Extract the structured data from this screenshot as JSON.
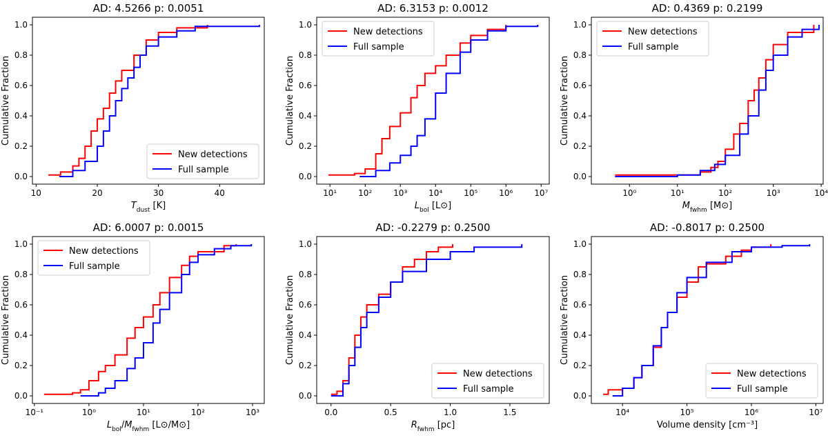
{
  "chart_data": [
    {
      "type": "line",
      "title": "AD: 4.5266 p: 0.0051",
      "xlabel": [
        {
          "text": "T",
          "italic": true
        },
        {
          "text": "dust",
          "sub": true
        },
        {
          "text": " [K]"
        }
      ],
      "ylabel": "Cumulative Fraction",
      "xlim": [
        9.4,
        47.3
      ],
      "ylim": [
        -0.05,
        1.05
      ],
      "xscale": "linear",
      "legend": "lower right",
      "xticks": [
        10,
        20,
        30,
        40
      ],
      "yticks": [
        {
          "value": 0,
          "label": "0.0"
        },
        0.2,
        0.4,
        0.6,
        0.8,
        {
          "value": 1,
          "label": "1.0"
        }
      ],
      "series": [
        {
          "name": "New detections",
          "color": "#ff0000",
          "x": [
            12,
            14,
            16,
            17,
            18,
            19,
            20,
            21,
            22,
            23,
            24,
            26,
            28,
            30,
            33,
            38
          ],
          "values": [
            0.01,
            0.03,
            0.07,
            0.12,
            0.2,
            0.3,
            0.38,
            0.45,
            0.55,
            0.63,
            0.7,
            0.8,
            0.9,
            0.95,
            0.98,
            1.0
          ]
        },
        {
          "name": "Full sample",
          "color": "#0000ff",
          "x": [
            13.8,
            16,
            18,
            20,
            21,
            22,
            23,
            24,
            25,
            26,
            27,
            28,
            30,
            33,
            36,
            46.5
          ],
          "values": [
            0.0,
            0.04,
            0.1,
            0.2,
            0.3,
            0.4,
            0.5,
            0.58,
            0.65,
            0.72,
            0.8,
            0.86,
            0.92,
            0.96,
            0.99,
            1.0
          ]
        }
      ]
    },
    {
      "type": "line",
      "title": "AD: 6.3153 p: 0.0012",
      "xlabel": [
        {
          "text": "L",
          "italic": true
        },
        {
          "text": "bol",
          "sub": true
        },
        {
          "text": " [L⊙]"
        }
      ],
      "ylabel": "Cumulative Fraction",
      "xlim": [
        4.2,
        17000000
      ],
      "ylim": [
        -0.05,
        1.05
      ],
      "xscale": "log",
      "legend": "upper left",
      "xticks": [
        {
          "value": 10,
          "label": "10¹"
        },
        {
          "value": 100,
          "label": "10²"
        },
        {
          "value": 1000,
          "label": "10³"
        },
        {
          "value": 10000,
          "label": "10⁴"
        },
        {
          "value": 100000,
          "label": "10⁵"
        },
        {
          "value": 1000000,
          "label": "10⁶"
        },
        {
          "value": 10000000,
          "label": "10⁷"
        }
      ],
      "yticks": [
        {
          "value": 0,
          "label": "0.0"
        },
        0.2,
        0.4,
        0.6,
        0.8,
        {
          "value": 1,
          "label": "1.0"
        }
      ],
      "series": [
        {
          "name": "New detections",
          "color": "#ff0000",
          "x": [
            9,
            50,
            100,
            200,
            300,
            500,
            1000,
            2000,
            3000,
            5000,
            10000,
            20000,
            50000,
            100000,
            300000,
            1000000
          ],
          "values": [
            0.01,
            0.02,
            0.05,
            0.15,
            0.25,
            0.33,
            0.42,
            0.52,
            0.6,
            0.68,
            0.73,
            0.8,
            0.88,
            0.93,
            0.97,
            1.0
          ]
        },
        {
          "name": "Full sample",
          "color": "#0000ff",
          "x": [
            70,
            200,
            500,
            1000,
            2000,
            3000,
            5000,
            10000,
            20000,
            50000,
            100000,
            300000,
            1000000,
            8000000
          ],
          "values": [
            0.0,
            0.04,
            0.09,
            0.14,
            0.2,
            0.27,
            0.38,
            0.55,
            0.68,
            0.82,
            0.9,
            0.96,
            0.99,
            1.0
          ]
        }
      ]
    },
    {
      "type": "line",
      "title": "AD: 0.4369 p: 0.2199",
      "xlabel": [
        {
          "text": "M",
          "italic": true
        },
        {
          "text": "fwhm",
          "sub": true
        },
        {
          "text": " [M⊙]"
        }
      ],
      "ylabel": "Cumulative Fraction",
      "xlim": [
        0.16,
        11000
      ],
      "ylim": [
        -0.05,
        1.05
      ],
      "xscale": "log",
      "legend": "upper left",
      "xticks": [
        {
          "value": 1,
          "label": "10⁰"
        },
        {
          "value": 10,
          "label": "10¹"
        },
        {
          "value": 100,
          "label": "10²"
        },
        {
          "value": 1000,
          "label": "10³"
        },
        {
          "value": 10000,
          "label": "10⁴"
        }
      ],
      "yticks": [
        {
          "value": 0,
          "label": "0.0"
        },
        0.2,
        0.4,
        0.6,
        0.8,
        {
          "value": 1,
          "label": "1.0"
        }
      ],
      "series": [
        {
          "name": "New detections",
          "color": "#ff0000",
          "x": [
            0.5,
            10,
            30,
            50,
            70,
            100,
            150,
            200,
            300,
            400,
            500,
            700,
            1000,
            2000,
            7000
          ],
          "values": [
            0.01,
            0.01,
            0.03,
            0.06,
            0.1,
            0.18,
            0.28,
            0.35,
            0.5,
            0.57,
            0.65,
            0.77,
            0.87,
            0.95,
            1.0
          ]
        },
        {
          "name": "Full sample",
          "color": "#0000ff",
          "x": [
            0.5,
            10,
            30,
            60,
            100,
            200,
            300,
            500,
            700,
            1000,
            2000,
            4000,
            9000
          ],
          "values": [
            0.0,
            0.01,
            0.04,
            0.08,
            0.14,
            0.28,
            0.4,
            0.57,
            0.7,
            0.8,
            0.92,
            0.97,
            1.0
          ]
        }
      ]
    },
    {
      "type": "line",
      "title": "AD: 6.0007 p: 0.0015",
      "xlabel": [
        {
          "text": "L",
          "italic": true
        },
        {
          "text": "bol",
          "sub": true
        },
        {
          "text": "/"
        },
        {
          "text": "M",
          "italic": true
        },
        {
          "text": "fwhm",
          "sub": true
        },
        {
          "text": " [L⊙/M⊙]"
        }
      ],
      "ylabel": "Cumulative Fraction",
      "xlim": [
        0.092,
        1640
      ],
      "ylim": [
        -0.05,
        1.05
      ],
      "xscale": "log",
      "legend": "upper left",
      "xticks": [
        {
          "value": 0.1,
          "label": "10⁻¹"
        },
        {
          "value": 1,
          "label": "10⁰"
        },
        {
          "value": 10,
          "label": "10¹"
        },
        {
          "value": 100,
          "label": "10²"
        },
        {
          "value": 1000,
          "label": "10³"
        }
      ],
      "yticks": [
        {
          "value": 0,
          "label": "0.0"
        },
        0.2,
        0.4,
        0.6,
        0.8,
        {
          "value": 1,
          "label": "1.0"
        }
      ],
      "series": [
        {
          "name": "New detections",
          "color": "#ff0000",
          "x": [
            0.15,
            0.5,
            0.7,
            1,
            1.5,
            2,
            3,
            5,
            7,
            10,
            15,
            20,
            30,
            50,
            70,
            100,
            300,
            500
          ],
          "values": [
            0.01,
            0.02,
            0.04,
            0.1,
            0.16,
            0.2,
            0.27,
            0.38,
            0.45,
            0.52,
            0.6,
            0.68,
            0.78,
            0.86,
            0.92,
            0.95,
            0.99,
            1.0
          ]
        },
        {
          "name": "Full sample",
          "color": "#0000ff",
          "x": [
            0.7,
            1.5,
            2,
            3,
            5,
            7,
            10,
            15,
            20,
            30,
            50,
            70,
            100,
            200,
            400,
            950
          ],
          "values": [
            0.0,
            0.02,
            0.05,
            0.1,
            0.18,
            0.25,
            0.35,
            0.48,
            0.57,
            0.68,
            0.8,
            0.88,
            0.93,
            0.97,
            0.99,
            1.0
          ]
        }
      ]
    },
    {
      "type": "line",
      "title": "AD: -0.2279 p: 0.2500",
      "xlabel": [
        {
          "text": "R",
          "italic": true
        },
        {
          "text": "fwhm",
          "sub": true
        },
        {
          "text": " [pc]"
        }
      ],
      "ylabel": "Cumulative Fraction",
      "xlim": [
        -0.12,
        1.83
      ],
      "ylim": [
        -0.05,
        1.05
      ],
      "xscale": "linear",
      "legend": "lower right",
      "xticks": [
        {
          "value": 0,
          "label": "0.0"
        },
        0.5,
        {
          "value": 1,
          "label": "1.0"
        },
        1.5
      ],
      "yticks": [
        {
          "value": 0,
          "label": "0.0"
        },
        0.2,
        0.4,
        0.6,
        0.8,
        {
          "value": 1,
          "label": "1.0"
        }
      ],
      "series": [
        {
          "name": "New detections",
          "color": "#ff0000",
          "x": [
            0.0,
            0.05,
            0.1,
            0.15,
            0.2,
            0.25,
            0.3,
            0.4,
            0.5,
            0.6,
            0.7,
            0.8,
            0.9,
            1.02
          ],
          "values": [
            0.01,
            0.03,
            0.1,
            0.25,
            0.4,
            0.52,
            0.6,
            0.67,
            0.75,
            0.85,
            0.9,
            0.95,
            0.98,
            1.0
          ]
        },
        {
          "name": "Full sample",
          "color": "#0000ff",
          "x": [
            0.0,
            0.1,
            0.15,
            0.2,
            0.25,
            0.3,
            0.4,
            0.5,
            0.6,
            0.8,
            1.0,
            1.2,
            1.6
          ],
          "values": [
            0.0,
            0.08,
            0.2,
            0.32,
            0.45,
            0.55,
            0.65,
            0.75,
            0.82,
            0.9,
            0.95,
            0.98,
            1.0
          ]
        }
      ]
    },
    {
      "type": "line",
      "title": "AD: -0.8017 p: 0.2500",
      "xlabel": [
        {
          "text": "Volume density [cm⁻³]"
        }
      ],
      "ylabel": "Cumulative Fraction",
      "xlim": [
        3280,
        13000000
      ],
      "ylim": [
        -0.05,
        1.05
      ],
      "xscale": "log",
      "legend": "lower right",
      "xticks": [
        {
          "value": 10000,
          "label": "10⁴"
        },
        {
          "value": 100000,
          "label": "10⁵"
        },
        {
          "value": 1000000,
          "label": "10⁶"
        },
        {
          "value": 10000000,
          "label": "10⁷"
        }
      ],
      "yticks": [
        {
          "value": 0,
          "label": "0.0"
        },
        0.2,
        0.4,
        0.6,
        0.8,
        {
          "value": 1,
          "label": "1.0"
        }
      ],
      "series": [
        {
          "name": "New detections",
          "color": "#ff0000",
          "x": [
            5000,
            6000,
            10000,
            15000,
            20000,
            30000,
            40000,
            50000,
            70000,
            100000,
            150000,
            200000,
            400000,
            700000,
            1000000,
            2000000
          ],
          "values": [
            0.01,
            0.04,
            0.05,
            0.12,
            0.2,
            0.32,
            0.45,
            0.55,
            0.65,
            0.75,
            0.85,
            0.87,
            0.92,
            0.96,
            0.98,
            1.0
          ]
        },
        {
          "name": "Full sample",
          "color": "#0000ff",
          "x": [
            7000,
            10000,
            15000,
            20000,
            30000,
            40000,
            50000,
            70000,
            100000,
            200000,
            500000,
            1000000,
            3000000,
            8000000
          ],
          "values": [
            0.0,
            0.05,
            0.12,
            0.2,
            0.33,
            0.45,
            0.55,
            0.68,
            0.78,
            0.88,
            0.95,
            0.98,
            0.99,
            1.0
          ]
        }
      ]
    }
  ]
}
